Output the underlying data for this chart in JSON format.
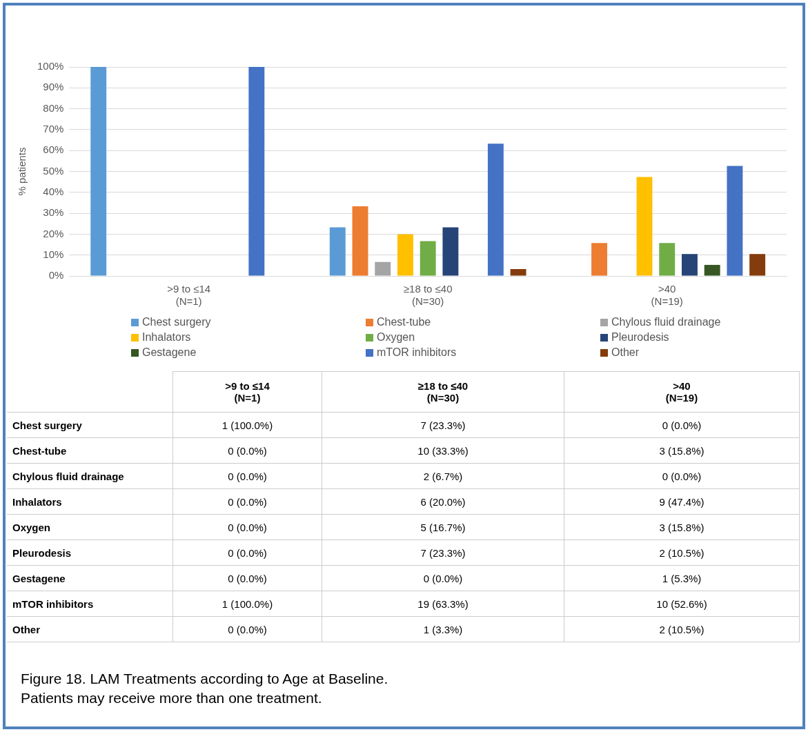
{
  "chart_data": {
    "type": "bar",
    "ylabel": "% patients",
    "categories": [
      ">9 to ≤14\n(N=1)",
      "≥18 to ≤40\n(N=30)",
      ">40\n(N=19)"
    ],
    "series": [
      {
        "name": "Chest surgery",
        "color": "#5b9bd5",
        "values": [
          100,
          23.3,
          0
        ],
        "value_labels": [
          "1 (100.0%)",
          "7 (23.3%)",
          "0 (0.0%)"
        ]
      },
      {
        "name": "Chest-tube",
        "color": "#ed7d31",
        "values": [
          0,
          33.3,
          15.8
        ],
        "value_labels": [
          "0 (0.0%)",
          "10 (33.3%)",
          "3 (15.8%)"
        ]
      },
      {
        "name": "Chylous fluid drainage",
        "color": "#a5a5a5",
        "values": [
          0,
          6.7,
          0
        ],
        "value_labels": [
          "0 (0.0%)",
          "2 (6.7%)",
          "0 (0.0%)"
        ]
      },
      {
        "name": "Inhalators",
        "color": "#ffc000",
        "values": [
          0,
          20.0,
          47.4
        ],
        "value_labels": [
          "0 (0.0%)",
          "6 (20.0%)",
          "9 (47.4%)"
        ]
      },
      {
        "name": "Oxygen",
        "color": "#70ad47",
        "values": [
          0,
          16.7,
          15.8
        ],
        "value_labels": [
          "0 (0.0%)",
          "5 (16.7%)",
          "3 (15.8%)"
        ]
      },
      {
        "name": "Pleurodesis",
        "color": "#264478",
        "values": [
          0,
          23.3,
          10.5
        ],
        "value_labels": [
          "0 (0.0%)",
          "7 (23.3%)",
          "2 (10.5%)"
        ]
      },
      {
        "name": "Gestagene",
        "color": "#375623",
        "values": [
          0,
          0,
          5.3
        ],
        "value_labels": [
          "0 (0.0%)",
          "0 (0.0%)",
          "1 (5.3%)"
        ]
      },
      {
        "name": "mTOR inhibitors",
        "color": "#4472c4",
        "values": [
          100,
          63.3,
          52.6
        ],
        "value_labels": [
          "1 (100.0%)",
          "19 (63.3%)",
          "10 (52.6%)"
        ]
      },
      {
        "name": "Other",
        "color": "#843c0c",
        "values": [
          0,
          3.3,
          10.5
        ],
        "value_labels": [
          "0 (0.0%)",
          "1 (3.3%)",
          "2 (10.5%)"
        ]
      }
    ],
    "ylim": [
      0,
      100
    ],
    "yticks": [
      {
        "value": 0,
        "label": "0%"
      },
      {
        "value": 10,
        "label": "10%"
      },
      {
        "value": 20,
        "label": "20%"
      },
      {
        "value": 30,
        "label": "30%"
      },
      {
        "value": 40,
        "label": "40%"
      },
      {
        "value": 50,
        "label": "50%"
      },
      {
        "value": 60,
        "label": "60%"
      },
      {
        "value": 70,
        "label": "70%"
      },
      {
        "value": 80,
        "label": "80%"
      },
      {
        "value": 90,
        "label": "90%"
      },
      {
        "value": 100,
        "label": "100%"
      }
    ],
    "grid": "y",
    "legend": "bottom",
    "annotations": [
      "Figure 18. LAM Treatments according to Age at Baseline.",
      "Patients may receive more than one treatment."
    ]
  }
}
